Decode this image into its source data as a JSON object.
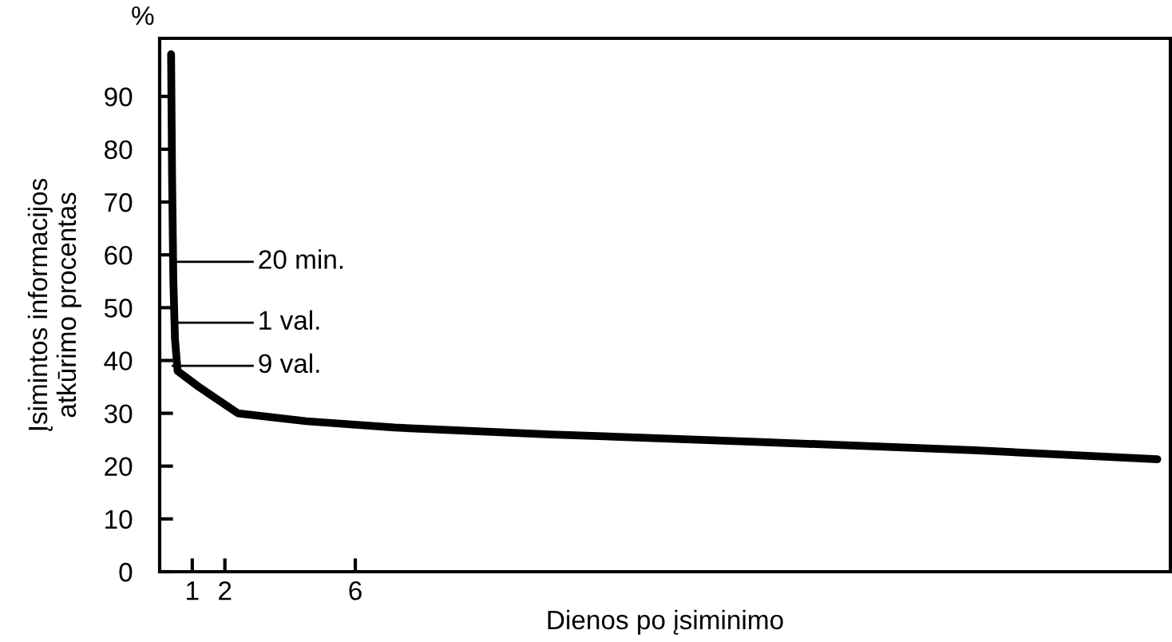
{
  "chart_data": {
    "type": "line",
    "xlabel": "Dienos po įsiminimo",
    "ylabel": "Įsimintos informacijos\natkūrimo procentas",
    "x": [
      0.35,
      0.38,
      0.42,
      0.47,
      0.55,
      1.2,
      2.4,
      4.5,
      7.2,
      12,
      18.3,
      25,
      30.6
    ],
    "series": [
      {
        "color": "#000000",
        "values": [
          98,
          75,
          55,
          44,
          38,
          35,
          30,
          28.5,
          27.3,
          26,
          24.6,
          23,
          21.3
        ]
      }
    ],
    "xlim": [
      0,
      31
    ],
    "ylim": [
      0,
      101
    ],
    "xticks": [
      1,
      2,
      6
    ],
    "yticks": [
      0,
      10,
      20,
      30,
      40,
      50,
      60,
      70,
      80,
      90
    ],
    "annotations": [
      "%",
      "20 min.",
      "1 val.",
      "9 val."
    ],
    "grid": false,
    "legend": false,
    "marker": "none",
    "line_style": "solid"
  }
}
